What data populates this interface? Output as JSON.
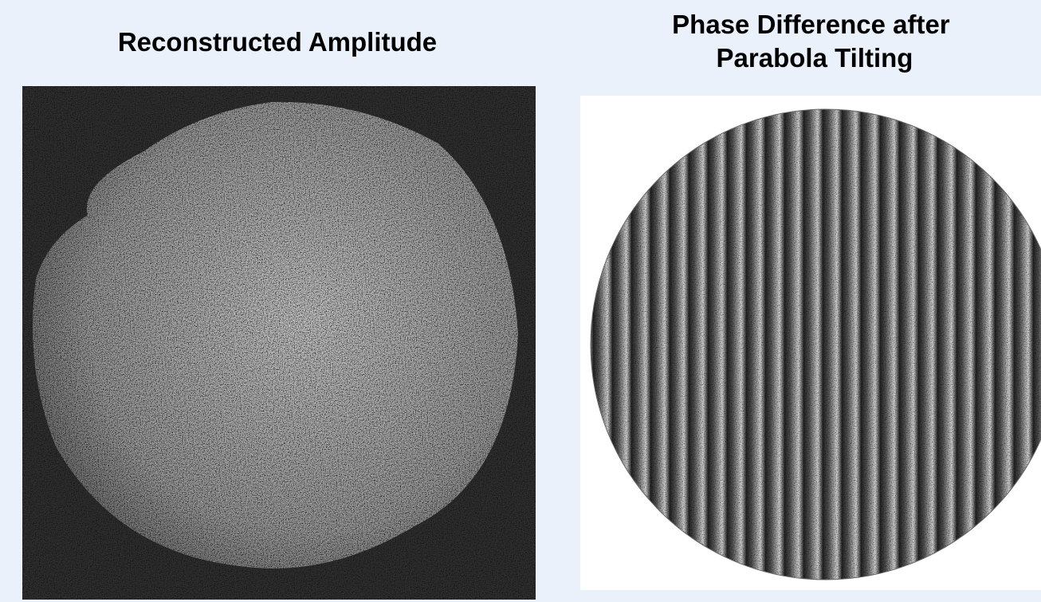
{
  "panels": [
    {
      "title_lines": [
        "Reconstructed Amplitude"
      ]
    },
    {
      "title_lines": [
        "Phase Difference after",
        "Parabola Tilting"
      ]
    }
  ]
}
